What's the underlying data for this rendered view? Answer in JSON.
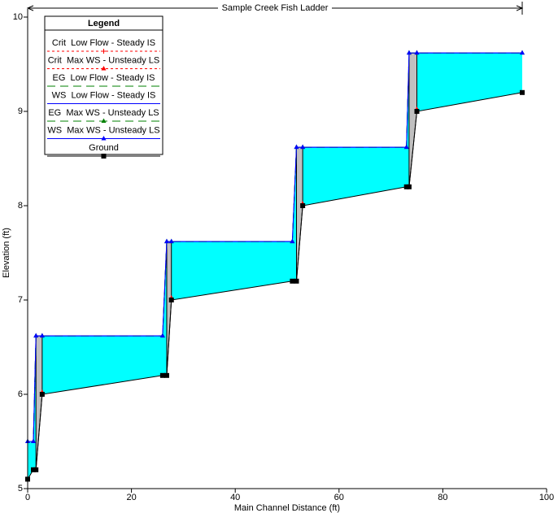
{
  "chart_data": {
    "type": "line",
    "annotation": {
      "text": "Sample Creek Fish Ladder",
      "start": 0,
      "end": 95.3
    },
    "xlabel": "Main Channel Distance (ft)",
    "ylabel": "Elevation (ft)",
    "legend_title": "Legend",
    "legend": "upper left",
    "xlim": [
      0,
      100
    ],
    "xticks": [
      0,
      20,
      40,
      60,
      80,
      100
    ],
    "ylim": [
      5,
      10
    ],
    "yticks": [
      5,
      6,
      7,
      8,
      9,
      10
    ],
    "water_color": "#00ffff",
    "wall_color": "#c0c0c0",
    "x": [
      0,
      1.1,
      1.6,
      2.8,
      26,
      26.8,
      27.7,
      51,
      51.8,
      53,
      73,
      73.5,
      75,
      95.3
    ],
    "series": [
      {
        "name": "Crit  Low Flow - Steady IS",
        "color": "#ff0000",
        "dash": "3,3",
        "marker": "plus",
        "values": [
          null,
          null,
          null,
          6.02,
          null,
          null,
          7.02,
          null,
          null,
          8.02,
          null,
          null,
          9.02,
          null
        ]
      },
      {
        "name": "Crit  Max WS - Unsteady LS",
        "color": "#ff0000",
        "dash": "3,3",
        "marker": "triangle",
        "values": [
          null,
          null,
          null,
          6.02,
          null,
          null,
          7.02,
          null,
          null,
          8.02,
          null,
          null,
          9.02,
          null
        ]
      },
      {
        "name": "EG  Low Flow - Steady IS",
        "color": "#008000",
        "dash": "10,6",
        "marker": "none",
        "values": [
          5.5,
          5.5,
          6.62,
          6.62,
          6.62,
          7.62,
          7.62,
          7.62,
          8.62,
          8.62,
          8.62,
          9.62,
          9.62,
          9.62
        ]
      },
      {
        "name": "WS  Low Flow - Steady IS",
        "color": "#0000ff",
        "dash": "none",
        "marker": "none",
        "values": [
          5.5,
          5.5,
          6.62,
          6.62,
          6.62,
          7.62,
          7.62,
          7.62,
          8.62,
          8.62,
          8.62,
          9.62,
          9.62,
          9.62
        ]
      },
      {
        "name": "EG  Max WS - Unsteady LS",
        "color": "#008000",
        "dash": "10,6",
        "marker": "triangle",
        "values": [
          5.5,
          5.5,
          6.62,
          6.62,
          6.62,
          7.62,
          7.62,
          7.62,
          8.62,
          8.62,
          8.62,
          9.62,
          9.62,
          9.62
        ]
      },
      {
        "name": "WS  Max WS - Unsteady LS",
        "color": "#0000ff",
        "dash": "none",
        "marker": "triangle",
        "values": [
          5.5,
          5.5,
          6.62,
          6.62,
          6.62,
          7.62,
          7.62,
          7.62,
          8.62,
          8.62,
          8.62,
          9.62,
          9.62,
          9.62
        ]
      },
      {
        "name": "Ground",
        "color": "#000000",
        "dash": "none",
        "marker": "square",
        "values": [
          5.1,
          5.2,
          5.2,
          6.0,
          6.2,
          6.2,
          7.0,
          7.2,
          7.2,
          8.0,
          8.2,
          8.2,
          9.0,
          9.2
        ]
      }
    ]
  }
}
